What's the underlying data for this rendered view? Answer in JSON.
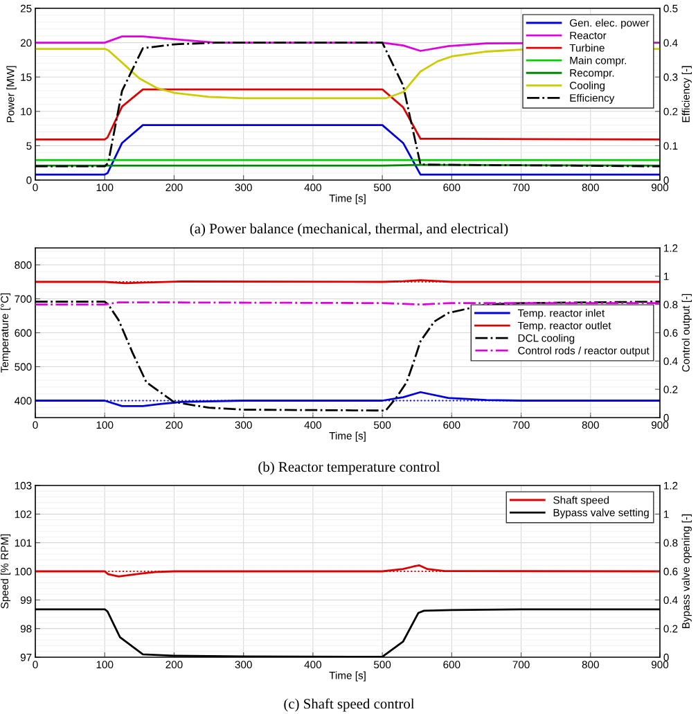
{
  "chart_data": [
    {
      "type": "line",
      "title": "(a) Power balance (mechanical, thermal, and electrical)",
      "xlabel": "Time [s]",
      "ylabel": "Power [MW]",
      "y2label": "Efficiency [-]",
      "xlim": [
        0,
        900
      ],
      "xticks": [
        0,
        100,
        200,
        300,
        400,
        500,
        600,
        700,
        800,
        900
      ],
      "ylim": [
        0,
        25
      ],
      "yticks": [
        0,
        5,
        10,
        15,
        20,
        25
      ],
      "y2lim": [
        0,
        0.5
      ],
      "y2ticks": [
        0,
        0.1,
        0.2,
        0.3,
        0.4,
        0.5
      ],
      "grid": true,
      "legend": "top right",
      "series": [
        {
          "name": "Gen. elec. power",
          "color": "#0000dd",
          "x": [
            0,
            100,
            104,
            125,
            155,
            500,
            530,
            555,
            900
          ],
          "values": [
            0.8,
            0.8,
            1.0,
            5.4,
            8.0,
            8.0,
            5.4,
            0.8,
            0.8
          ]
        },
        {
          "name": "Reactor",
          "color": "#dd00dd",
          "x": [
            0,
            100,
            125,
            155,
            200,
            260,
            500,
            530,
            555,
            595,
            650,
            900
          ],
          "values": [
            20,
            20,
            20.9,
            20.9,
            20.5,
            20.0,
            20.0,
            19.6,
            18.8,
            19.5,
            19.9,
            20.0
          ]
        },
        {
          "name": "Turbine",
          "color": "#dd0000",
          "x": [
            0,
            100,
            104,
            125,
            155,
            500,
            530,
            555,
            600,
            900
          ],
          "values": [
            5.9,
            5.9,
            6.2,
            10.7,
            13.2,
            13.2,
            10.6,
            6.0,
            6.0,
            5.9
          ]
        },
        {
          "name": "Main compr.",
          "color": "#00cc00",
          "x": [
            0,
            900
          ],
          "values": [
            2.9,
            2.9
          ]
        },
        {
          "name": "Recompr.",
          "color": "#008800",
          "x": [
            0,
            500,
            555,
            900
          ],
          "values": [
            2.1,
            2.1,
            2.2,
            2.1
          ]
        },
        {
          "name": "Cooling",
          "color": "#cccc00",
          "x": [
            0,
            100,
            105,
            125,
            150,
            175,
            200,
            250,
            300,
            500,
            505,
            530,
            555,
            580,
            600,
            650,
            700,
            900
          ],
          "values": [
            19.1,
            19.1,
            18.9,
            17.1,
            14.8,
            13.4,
            12.7,
            12.1,
            11.9,
            11.9,
            11.9,
            12.8,
            15.8,
            17.3,
            18.0,
            18.7,
            19.0,
            19.1
          ]
        },
        {
          "name": "Efficiency",
          "color": "#000000",
          "axis": "y2",
          "line_style": "dashdot",
          "x": [
            0,
            100,
            105,
            125,
            155,
            200,
            260,
            500,
            530,
            555,
            900
          ],
          "values": [
            0.04,
            0.04,
            0.05,
            0.26,
            0.384,
            0.395,
            0.4,
            0.4,
            0.275,
            0.045,
            0.04
          ]
        }
      ]
    },
    {
      "type": "line",
      "title": "(b) Reactor temperature control",
      "xlabel": "Time [s]",
      "ylabel": "Temperature [°C]",
      "y2label": "Control output [-]",
      "xlim": [
        0,
        900
      ],
      "xticks": [
        0,
        100,
        200,
        300,
        400,
        500,
        600,
        700,
        800,
        900
      ],
      "ylim": [
        350,
        850
      ],
      "yticks": [
        400,
        500,
        600,
        700,
        800
      ],
      "y2lim": [
        0,
        1.2
      ],
      "y2ticks": [
        0,
        0.2,
        0.4,
        0.6,
        0.8,
        1,
        1.2
      ],
      "grid": true,
      "legend": "right",
      "series": [
        {
          "name": "Temp. reactor inlet",
          "color": "#0000dd",
          "x": [
            0,
            100,
            125,
            155,
            180,
            210,
            300,
            500,
            530,
            555,
            595,
            650,
            700,
            900
          ],
          "values": [
            400,
            400,
            384,
            384,
            390,
            396,
            400,
            400,
            410,
            425,
            408,
            402,
            400,
            400
          ]
        },
        {
          "color": "#0000dd",
          "line_style": "dotted",
          "x": [
            0,
            900
          ],
          "values": [
            400,
            400
          ]
        },
        {
          "name": "Temp. reactor outlet",
          "color": "#dd0000",
          "x": [
            0,
            100,
            130,
            160,
            210,
            500,
            530,
            555,
            600,
            900
          ],
          "values": [
            750,
            750,
            746,
            748,
            751,
            750,
            752,
            755,
            750,
            750
          ]
        },
        {
          "color": "#dd0000",
          "line_style": "dotted",
          "x": [
            100,
            220,
            350,
            500,
            610
          ],
          "values": [
            750,
            750,
            null,
            750,
            750
          ]
        },
        {
          "name": "DCL cooling",
          "color": "#000000",
          "axis": "y2",
          "line_style": "dashdot",
          "x": [
            0,
            100,
            105,
            120,
            140,
            160,
            200,
            250,
            300,
            500,
            505,
            520,
            535,
            545,
            555,
            575,
            595,
            650,
            700,
            900
          ],
          "values": [
            0.82,
            0.82,
            0.8,
            0.69,
            0.46,
            0.25,
            0.11,
            0.07,
            0.056,
            0.05,
            0.05,
            0.14,
            0.25,
            0.39,
            0.54,
            0.68,
            0.74,
            0.8,
            0.81,
            0.82
          ]
        },
        {
          "name": "Control rods / reactor output",
          "color": "#dd00dd",
          "axis": "y2",
          "line_style": "dashdot",
          "x": [
            0,
            100,
            120,
            160,
            500,
            555,
            600,
            900
          ],
          "values": [
            0.8,
            0.8,
            0.815,
            0.815,
            0.81,
            0.8,
            0.81,
            0.81
          ]
        }
      ]
    },
    {
      "type": "line",
      "title": "(c) Shaft speed control",
      "xlabel": "Time [s]",
      "ylabel": "Speed [% RPM]",
      "y2label": "Bypass valve opening [-]",
      "xlim": [
        0,
        900
      ],
      "xticks": [
        0,
        100,
        200,
        300,
        400,
        500,
        600,
        700,
        800,
        900
      ],
      "ylim": [
        97,
        103
      ],
      "yticks": [
        97,
        98,
        99,
        100,
        101,
        102,
        103
      ],
      "y2lim": [
        0,
        1.2
      ],
      "y2ticks": [
        0,
        0.2,
        0.4,
        0.6,
        0.8,
        1,
        1.2
      ],
      "grid": true,
      "legend": "top right",
      "series": [
        {
          "name": "Shaft speed",
          "color": "#dd0000",
          "x": [
            0,
            100,
            105,
            120,
            155,
            175,
            200,
            500,
            530,
            545,
            553,
            565,
            590,
            900
          ],
          "values": [
            100,
            100,
            99.9,
            99.82,
            99.93,
            99.98,
            100,
            100,
            100.08,
            100.17,
            100.21,
            100.08,
            100.01,
            100
          ]
        },
        {
          "color": "#dd0000",
          "line_style": "dotted",
          "x": [
            100,
            200,
            350,
            500,
            600
          ],
          "values": [
            100,
            100,
            null,
            100,
            100
          ]
        },
        {
          "name": "Bypass valve setting",
          "color": "#000000",
          "axis": "y2",
          "x": [
            0,
            100,
            104,
            122,
            155,
            200,
            300,
            500,
            530,
            552,
            560,
            600,
            700,
            900
          ],
          "values": [
            0.335,
            0.335,
            0.32,
            0.14,
            0.02,
            0.01,
            0.005,
            0.003,
            0.11,
            0.31,
            0.325,
            0.33,
            0.335,
            0.335
          ]
        }
      ]
    }
  ]
}
